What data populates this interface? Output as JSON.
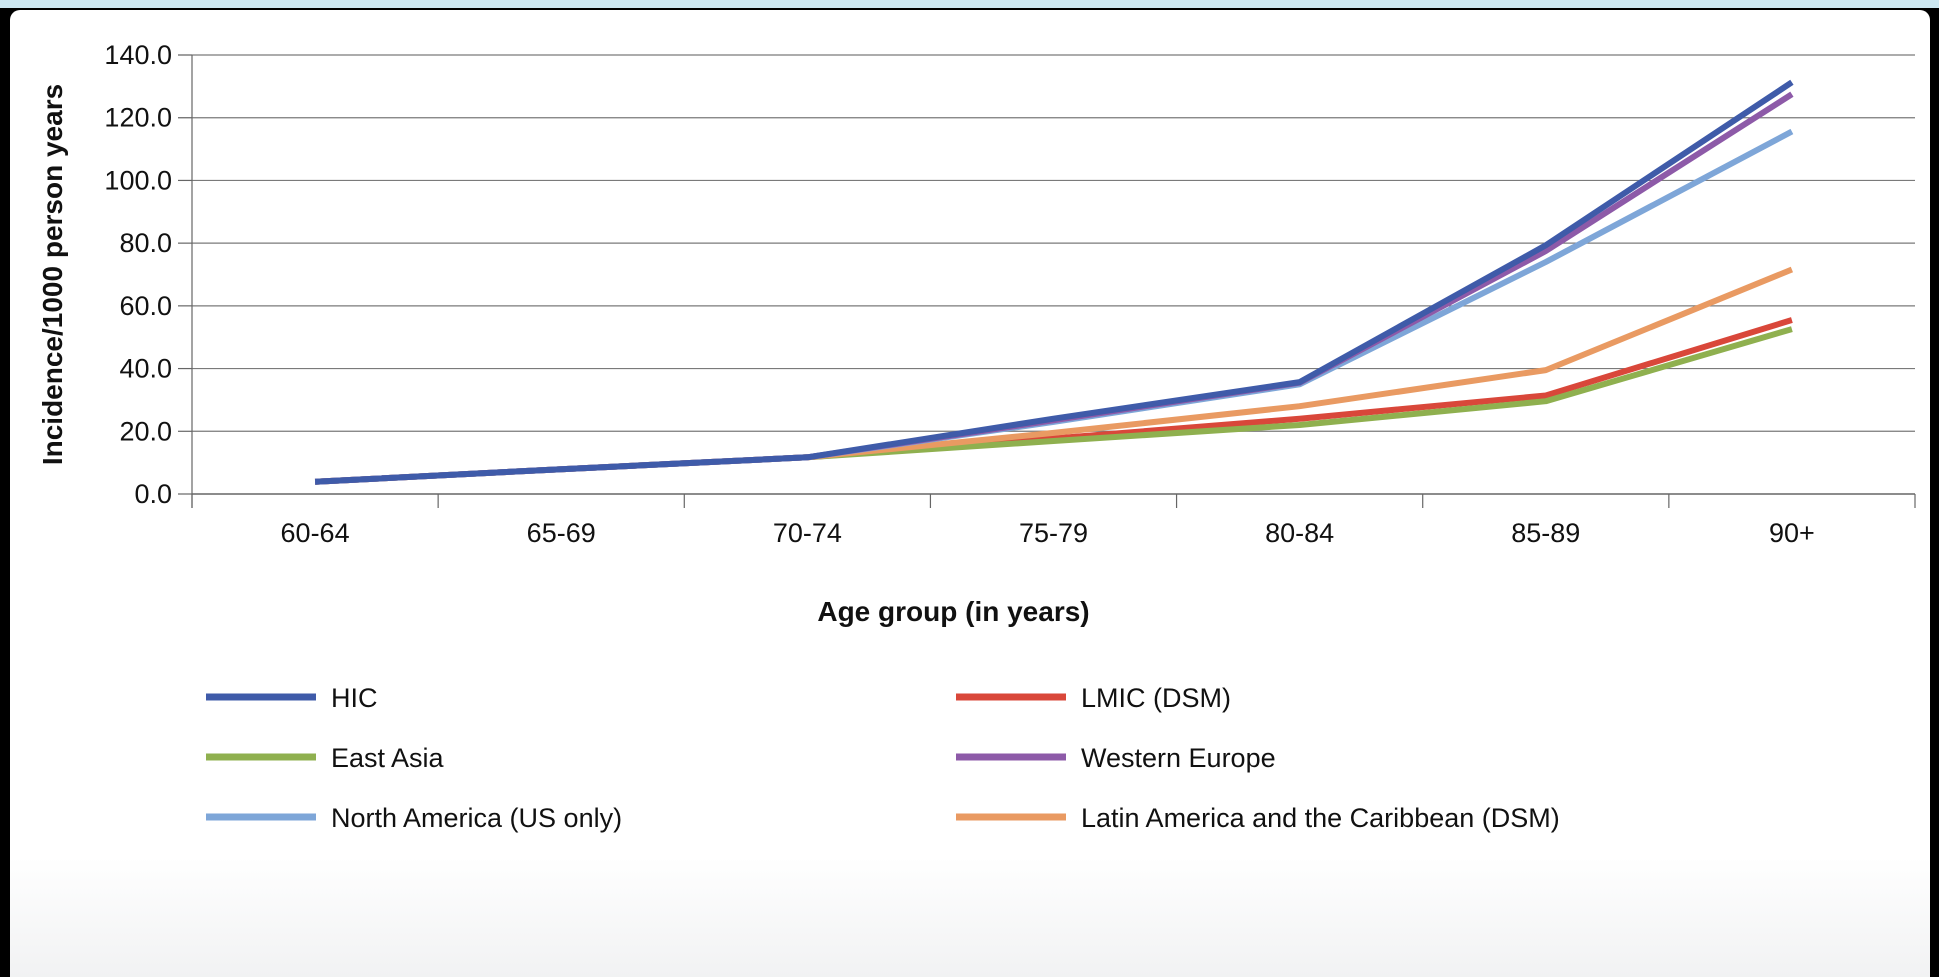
{
  "chart_data": {
    "type": "line",
    "title": "",
    "xlabel": "Age group (in years)",
    "ylabel": "Incidence/1000 person years",
    "ylim": [
      0,
      140
    ],
    "yticks": [
      "0.0",
      "20.0",
      "40.0",
      "60.0",
      "80.0",
      "100.0",
      "120.0",
      "140.0"
    ],
    "categories": [
      "60-64",
      "65-69",
      "70-74",
      "75-79",
      "80-84",
      "85-89",
      "90+"
    ],
    "grid": "horizontal",
    "legend_position": "bottom",
    "series": [
      {
        "name": "HIC",
        "color": "#3f5ba9",
        "values": [
          3.9,
          7.9,
          11.7,
          24.0,
          35.7,
          79.3,
          131.3
        ]
      },
      {
        "name": "LMIC (DSM)",
        "color": "#d9473a",
        "values": [
          3.9,
          7.9,
          11.7,
          17.7,
          24.0,
          31.4,
          55.5
        ]
      },
      {
        "name": "East Asia",
        "color": "#8fb04f",
        "values": [
          3.9,
          7.9,
          11.7,
          16.9,
          22.0,
          29.6,
          52.6
        ]
      },
      {
        "name": "Western Europe",
        "color": "#8d5aa8",
        "values": [
          3.9,
          7.9,
          11.7,
          23.5,
          35.5,
          77.5,
          127.5
        ]
      },
      {
        "name": "North America (US only)",
        "color": "#7ea6d8",
        "values": [
          3.9,
          7.9,
          11.7,
          23.0,
          35.0,
          74.0,
          115.6
        ]
      },
      {
        "name": "Latin America and the Caribbean (DSM)",
        "color": "#e99a62",
        "values": [
          3.9,
          7.9,
          11.7,
          19.5,
          28.0,
          39.5,
          71.6
        ]
      }
    ]
  }
}
